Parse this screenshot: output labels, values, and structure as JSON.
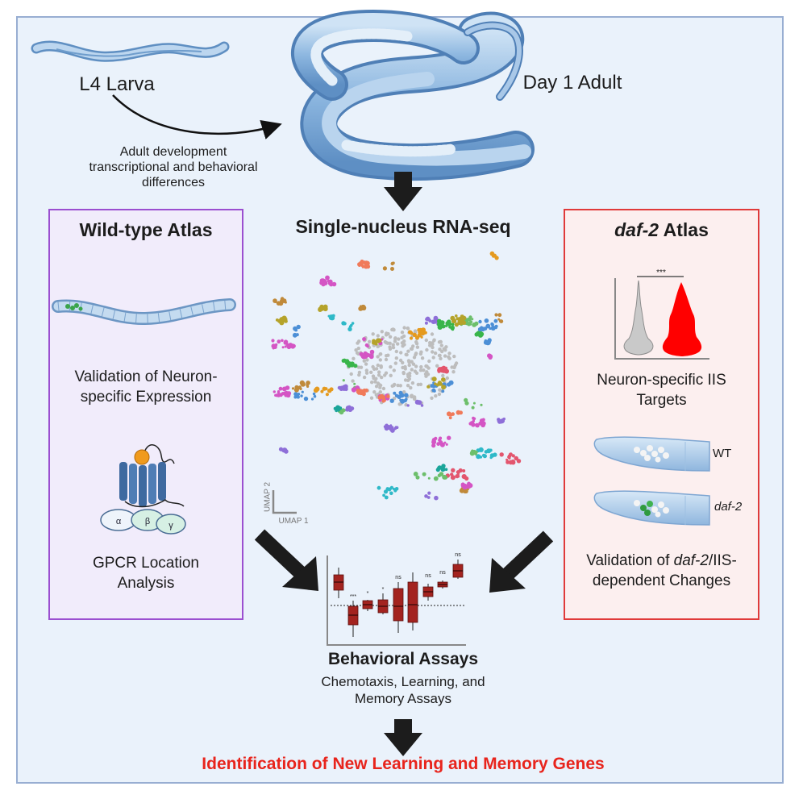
{
  "stages": {
    "larva_label": "L4 Larva",
    "adult_label": "Day 1 Adult",
    "development_note": [
      "Adult development",
      "transcriptional and behavioral",
      "differences"
    ]
  },
  "center": {
    "title": "Single-nucleus RNA-seq",
    "umap_x": "UMAP 1",
    "umap_y": "UMAP 2"
  },
  "wildtype": {
    "title": "Wild-type Atlas",
    "validation": [
      "Validation of Neuron-",
      "specific Expression"
    ],
    "gpcr": [
      "GPCR Location",
      "Analysis"
    ],
    "subunits": [
      "α",
      "β",
      "γ"
    ]
  },
  "daf2": {
    "title_italic": "daf-2",
    "title_rest": " Atlas",
    "significance": "***",
    "targets": [
      "Neuron-specific IIS",
      "Targets"
    ],
    "wt_label": "WT",
    "mutant_label": "daf-2",
    "validation_line1_pre": "Validation of ",
    "validation_line1_italic": "daf-2",
    "validation_line1_post": "/IIS-",
    "validation_line2": "dependent Changes"
  },
  "behavior": {
    "title": "Behavioral Assays",
    "subtitle": [
      "Chemotaxis, Learning, and",
      "Memory Assays"
    ],
    "significance_labels": [
      "***",
      "*",
      "*",
      "ns",
      "ns",
      "ns",
      "ns"
    ]
  },
  "conclusion": "Identification of New Learning and Memory Genes",
  "colors": {
    "background": "#eaf2fb",
    "frame": "#98aed2",
    "wildtype_border": "#9b4fd0",
    "wildtype_fill": "#f1ecfb",
    "daf2_border": "#e03a3a",
    "daf2_fill": "#fcefef",
    "conclusion_text": "#e8241c",
    "box_fill": "#a3231f"
  }
}
